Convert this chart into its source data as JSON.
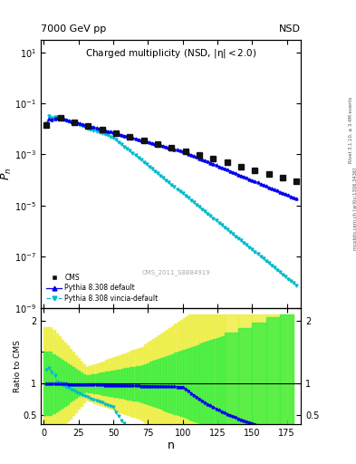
{
  "top_left_label": "7000 GeV pp",
  "top_right_label": "NSD",
  "ylabel_main": "$P_n$",
  "ylabel_ratio": "Ratio to CMS",
  "xlabel": "n",
  "watermark": "CMS_2011_S8884919",
  "ylim_main_log": [
    -9,
    1.5
  ],
  "ylim_ratio": [
    0.35,
    2.2
  ],
  "xlim": [
    -2,
    185
  ],
  "colors": {
    "cms": "#111111",
    "pythia_default": "#0000ee",
    "pythia_vincia": "#00bbcc",
    "band_yellow": "#eeee44",
    "band_green": "#44ee44"
  },
  "right_label1": "Rivet 3.1.10, ≥ 3.4M events",
  "right_label2": "mcplots.cern.ch [arXiv:1306.3436]"
}
